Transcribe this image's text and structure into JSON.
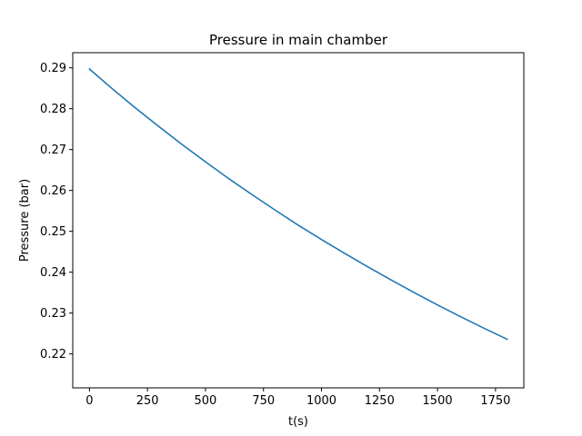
{
  "chart_data": {
    "type": "line",
    "title": "Pressure in main chamber",
    "xlabel": "t(s)",
    "ylabel": "Pressure (bar)",
    "xlim": [
      -72,
      1872
    ],
    "ylim": [
      0.2117,
      0.2937
    ],
    "x_ticks": [
      0,
      250,
      500,
      750,
      1000,
      1250,
      1500,
      1750
    ],
    "x_tick_labels": [
      "0",
      "250",
      "500",
      "750",
      "1000",
      "1250",
      "1500",
      "1750"
    ],
    "y_ticks": [
      0.22,
      0.23,
      0.24,
      0.25,
      0.26,
      0.27,
      0.28,
      0.29
    ],
    "y_tick_labels": [
      "0.22",
      "0.23",
      "0.24",
      "0.25",
      "0.26",
      "0.27",
      "0.28",
      "0.29"
    ],
    "grid": false,
    "legend": "none",
    "series": [
      {
        "color": "#1f77b4",
        "x": [
          0,
          100,
          200,
          300,
          400,
          500,
          600,
          700,
          800,
          900,
          1000,
          1100,
          1200,
          1300,
          1400,
          1500,
          1600,
          1700,
          1800
        ],
        "y": [
          0.2897,
          0.2848,
          0.2801,
          0.2756,
          0.2712,
          0.267,
          0.2629,
          0.259,
          0.2552,
          0.2515,
          0.248,
          0.2446,
          0.2413,
          0.2381,
          0.235,
          0.232,
          0.2291,
          0.2263,
          0.2236
        ]
      }
    ]
  }
}
